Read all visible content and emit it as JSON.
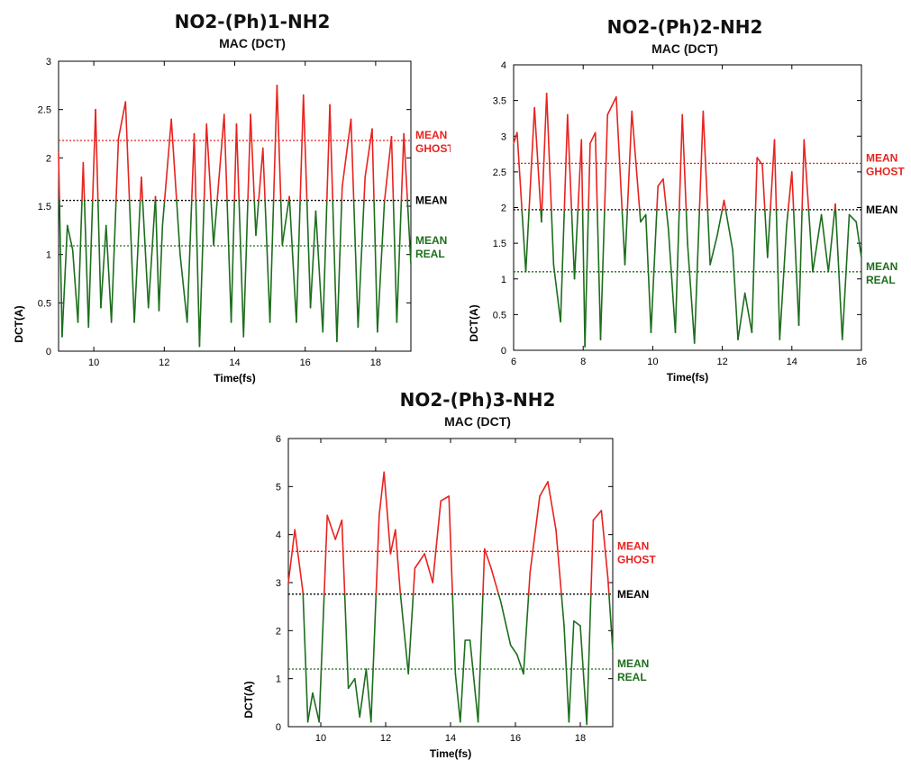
{
  "colors": {
    "ghost": "#e8231f",
    "real": "#1d6e1d",
    "mean": "#000000"
  },
  "chart_data": [
    {
      "type": "line",
      "title": "NO2-(Ph)1-NH2",
      "subtitle": "MAC (DCT)",
      "xlabel": "Time(fs)",
      "ylabel": "DCT(A)",
      "xlim": [
        9,
        19
      ],
      "ylim": [
        0,
        3
      ],
      "xticks": [
        "10",
        "12",
        "14",
        "16",
        "18"
      ],
      "yticks": [
        "0",
        "0.5",
        "1",
        "1.5",
        "2",
        "2.5",
        "3"
      ],
      "mean_lines": [
        {
          "name": "MEAN GHOST",
          "label1": "MEAN",
          "label2": "GHOST",
          "value": 2.18,
          "color": "ghost"
        },
        {
          "name": "MEAN",
          "label1": "MEAN",
          "label2": "",
          "value": 1.56,
          "color": "mean"
        },
        {
          "name": "MEAN REAL",
          "label1": "MEAN",
          "label2": "REAL",
          "value": 1.09,
          "color": "real"
        }
      ],
      "series": {
        "threshold": 1.56,
        "x": [
          9.0,
          9.1,
          9.25,
          9.4,
          9.55,
          9.7,
          9.85,
          10.05,
          10.2,
          10.35,
          10.5,
          10.7,
          10.9,
          11.15,
          11.35,
          11.55,
          11.75,
          11.85,
          11.95,
          12.2,
          12.45,
          12.65,
          12.85,
          13.0,
          13.2,
          13.4,
          13.7,
          13.9,
          14.05,
          14.25,
          14.45,
          14.6,
          14.8,
          15.0,
          15.2,
          15.35,
          15.55,
          15.75,
          15.95,
          16.15,
          16.3,
          16.5,
          16.7,
          16.9,
          17.05,
          17.3,
          17.5,
          17.7,
          17.9,
          18.05,
          18.25,
          18.45,
          18.6,
          18.8,
          19.0
        ],
        "y": [
          2.05,
          0.15,
          1.3,
          1.05,
          0.3,
          1.95,
          0.25,
          2.5,
          0.45,
          1.3,
          0.3,
          2.2,
          2.58,
          0.3,
          1.8,
          0.45,
          1.6,
          0.42,
          1.3,
          2.4,
          1.0,
          0.3,
          2.25,
          0.05,
          2.35,
          1.1,
          2.45,
          0.3,
          2.35,
          0.15,
          2.45,
          1.2,
          2.1,
          0.3,
          2.75,
          1.1,
          1.6,
          0.3,
          2.65,
          0.45,
          1.45,
          0.2,
          2.55,
          0.1,
          1.7,
          2.4,
          0.25,
          1.8,
          2.3,
          0.2,
          1.55,
          2.22,
          0.3,
          2.25,
          0.9
        ]
      }
    },
    {
      "type": "line",
      "title": "NO2-(Ph)2-NH2",
      "subtitle": "MAC (DCT)",
      "xlabel": "Time(fs)",
      "ylabel": "DCT(A)",
      "xlim": [
        6,
        16
      ],
      "ylim": [
        0,
        4
      ],
      "xticks": [
        "6",
        "8",
        "10",
        "12",
        "14",
        "16"
      ],
      "yticks": [
        "0",
        "0.5",
        "1",
        "1.5",
        "2",
        "2.5",
        "3",
        "3.5",
        "4"
      ],
      "mean_lines": [
        {
          "name": "MEAN GHOST",
          "label1": "MEAN",
          "label2": "GHOST",
          "value": 2.62,
          "color": "ghost"
        },
        {
          "name": "MEAN",
          "label1": "MEAN",
          "label2": "",
          "value": 1.97,
          "color": "mean"
        },
        {
          "name": "MEAN REAL",
          "label1": "MEAN",
          "label2": "REAL",
          "value": 1.1,
          "color": "real"
        }
      ],
      "series": {
        "threshold": 1.97,
        "x": [
          6.0,
          6.1,
          6.35,
          6.6,
          6.8,
          6.95,
          7.15,
          7.35,
          7.55,
          7.75,
          7.95,
          8.05,
          8.2,
          8.35,
          8.5,
          8.7,
          8.95,
          9.2,
          9.4,
          9.65,
          9.8,
          9.95,
          10.15,
          10.3,
          10.45,
          10.65,
          10.85,
          11.0,
          11.2,
          11.45,
          11.65,
          11.85,
          12.05,
          12.3,
          12.45,
          12.65,
          12.85,
          13.0,
          13.15,
          13.3,
          13.5,
          13.65,
          13.85,
          14.0,
          14.2,
          14.35,
          14.6,
          14.85,
          15.05,
          15.25,
          15.45,
          15.65,
          15.85,
          16.0
        ],
        "y": [
          2.9,
          3.05,
          1.1,
          3.4,
          1.8,
          3.6,
          1.2,
          0.4,
          3.3,
          1.0,
          2.95,
          0.05,
          2.9,
          3.05,
          0.15,
          3.3,
          3.55,
          1.2,
          3.35,
          1.8,
          1.9,
          0.25,
          2.3,
          2.4,
          1.7,
          0.25,
          3.3,
          1.5,
          0.1,
          3.35,
          1.2,
          1.6,
          2.1,
          1.4,
          0.15,
          0.8,
          0.25,
          2.7,
          2.6,
          1.3,
          2.95,
          0.15,
          1.75,
          2.5,
          0.35,
          2.95,
          1.1,
          1.9,
          1.1,
          2.05,
          0.15,
          1.9,
          1.8,
          1.3
        ]
      }
    },
    {
      "type": "line",
      "title": "NO2-(Ph)3-NH2",
      "subtitle": "MAC (DCT)",
      "xlabel": "Time(fs)",
      "ylabel": "DCT(A)",
      "xlim": [
        9,
        19
      ],
      "ylim": [
        0,
        6
      ],
      "xticks": [
        "10",
        "12",
        "14",
        "16",
        "18"
      ],
      "yticks": [
        "0",
        "1",
        "2",
        "3",
        "4",
        "5",
        "6"
      ],
      "mean_lines": [
        {
          "name": "MEAN GHOST",
          "label1": "MEAN",
          "label2": "GHOST",
          "value": 3.65,
          "color": "ghost"
        },
        {
          "name": "MEAN",
          "label1": "MEAN",
          "label2": "",
          "value": 2.76,
          "color": "mean"
        },
        {
          "name": "MEAN REAL",
          "label1": "MEAN",
          "label2": "REAL",
          "value": 1.2,
          "color": "real"
        }
      ],
      "series": {
        "threshold": 2.76,
        "x": [
          9.0,
          9.2,
          9.45,
          9.6,
          9.75,
          9.95,
          10.2,
          10.45,
          10.65,
          10.85,
          11.05,
          11.2,
          11.4,
          11.55,
          11.8,
          11.95,
          12.15,
          12.3,
          12.45,
          12.7,
          12.9,
          13.2,
          13.45,
          13.7,
          13.95,
          14.15,
          14.3,
          14.45,
          14.6,
          14.85,
          15.05,
          15.25,
          15.55,
          15.85,
          16.05,
          16.25,
          16.45,
          16.75,
          17.0,
          17.25,
          17.5,
          17.65,
          17.8,
          18.0,
          18.2,
          18.4,
          18.65,
          18.85,
          19.0
        ],
        "y": [
          3.0,
          4.1,
          2.8,
          0.1,
          0.7,
          0.1,
          4.4,
          3.9,
          4.3,
          0.8,
          1.0,
          0.2,
          1.2,
          0.1,
          4.4,
          5.3,
          3.6,
          4.1,
          2.8,
          1.1,
          3.3,
          3.6,
          3.0,
          4.7,
          4.8,
          1.1,
          0.1,
          1.8,
          1.8,
          0.1,
          3.7,
          3.3,
          2.6,
          1.7,
          1.5,
          1.1,
          3.2,
          4.8,
          5.1,
          4.1,
          2.1,
          0.1,
          2.2,
          2.1,
          0.05,
          4.3,
          4.5,
          3.1,
          1.6
        ]
      }
    }
  ]
}
